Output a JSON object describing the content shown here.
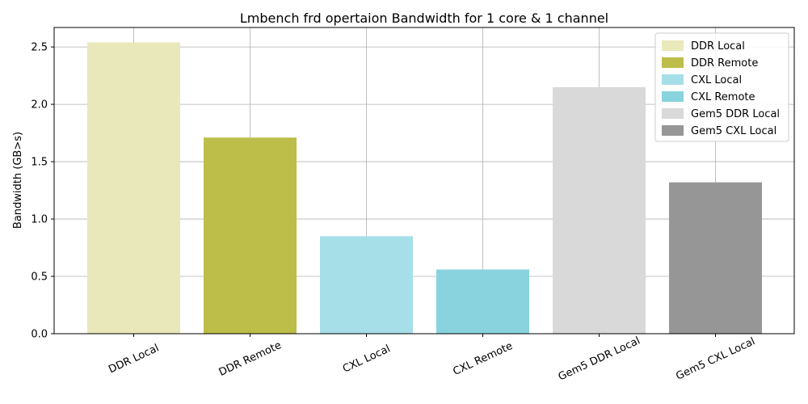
{
  "chart_data": {
    "type": "bar",
    "title": "Lmbench frd opertaion Bandwidth  for 1 core & 1 channel",
    "xlabel": "",
    "ylabel": "Bandwidth (GB>s)",
    "ylim": [
      0,
      2.67
    ],
    "yticks": [
      "0.0",
      "0.5",
      "1.0",
      "1.5",
      "2.0",
      "2.5"
    ],
    "grid": true,
    "legend_position": "top-right",
    "categories": [
      "DDR Local",
      "DDR Remote",
      "CXL Local",
      "CXL Remote",
      "Gem5 DDR Local",
      "Gem5 CXL Local"
    ],
    "values": [
      2.54,
      1.71,
      0.85,
      0.56,
      2.15,
      1.32
    ],
    "colors": [
      "#e8e8ba",
      "#bdbd4a",
      "#a6dfe8",
      "#88d3de",
      "#d9d9d9",
      "#969696"
    ],
    "legend": [
      "DDR Local",
      "DDR Remote",
      "CXL Local",
      "CXL Remote",
      "Gem5 DDR Local",
      "Gem5 CXL Local"
    ]
  }
}
